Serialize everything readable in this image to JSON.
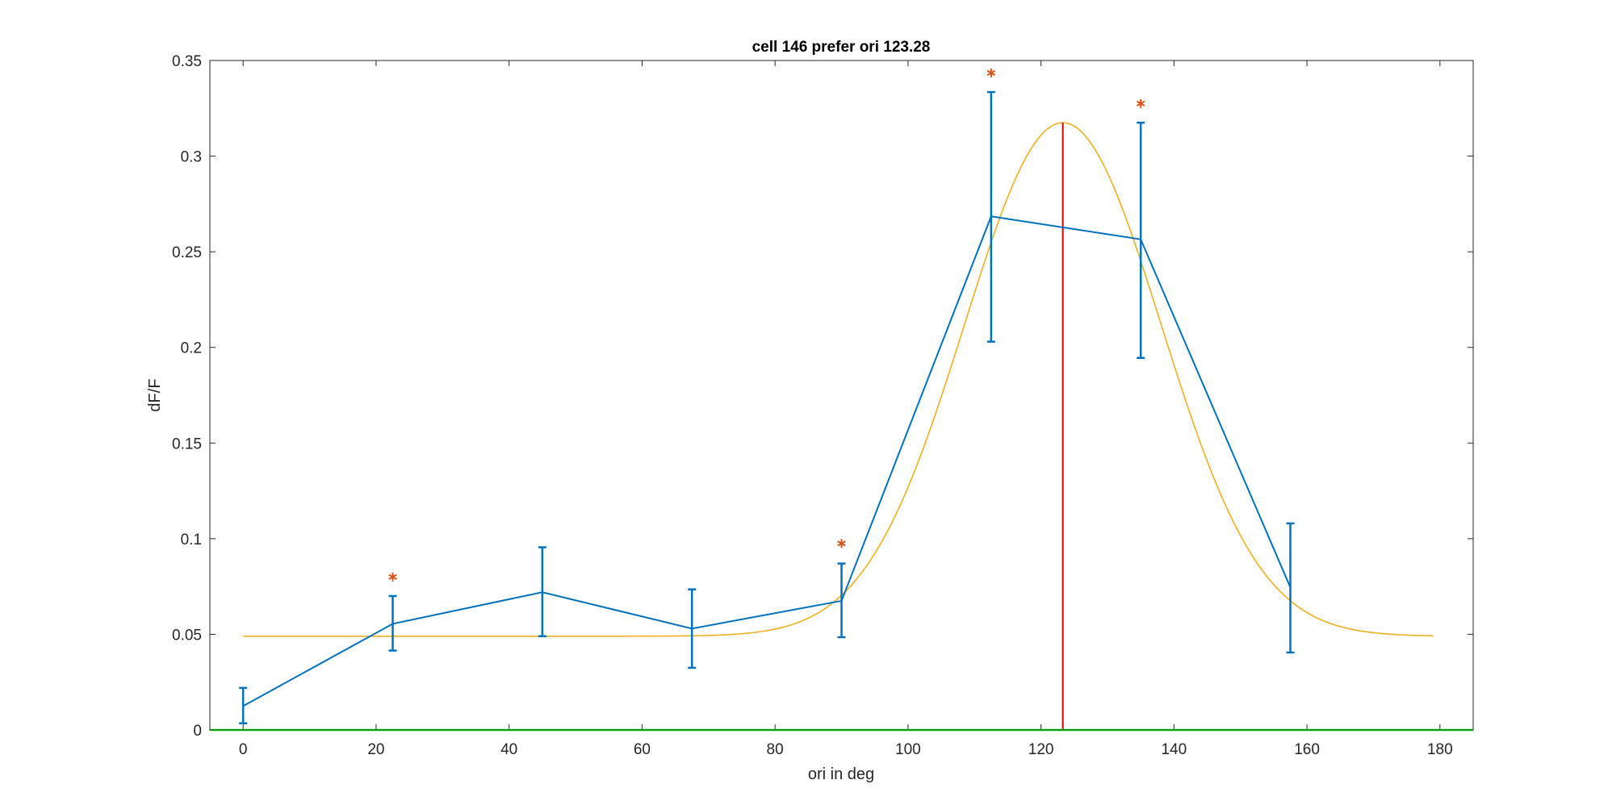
{
  "chart_data": {
    "type": "line",
    "title": "cell 146 prefer ori 123.28",
    "xlabel": "ori in deg",
    "ylabel": "dF/F",
    "xlim": [
      -5,
      185
    ],
    "ylim": [
      0,
      0.35
    ],
    "xticks": [
      0,
      20,
      40,
      60,
      80,
      100,
      120,
      140,
      160,
      180
    ],
    "yticks": [
      0,
      0.05,
      0.1,
      0.15,
      0.2,
      0.25,
      0.3,
      0.35
    ],
    "ytick_labels": [
      "0",
      "0.05",
      "0.1",
      "0.15",
      "0.2",
      "0.25",
      "0.3",
      "0.35"
    ],
    "grid": false,
    "box": true,
    "series": [
      {
        "kind": "errorbar-line",
        "color": "#0072BD",
        "x": [
          0,
          22.5,
          45,
          67.5,
          90,
          112.5,
          135,
          157.5
        ],
        "y": [
          0.0125,
          0.0555,
          0.072,
          0.053,
          0.0675,
          0.2685,
          0.2565,
          0.0745
        ],
        "err_low": [
          0.0035,
          0.0415,
          0.049,
          0.0325,
          0.0485,
          0.203,
          0.1945,
          0.0405
        ],
        "err_high": [
          0.022,
          0.07,
          0.0955,
          0.0735,
          0.087,
          0.3335,
          0.3175,
          0.108
        ]
      },
      {
        "kind": "fit-curve",
        "color": "#EDB120",
        "baseline": 0.049,
        "amplitude": 0.2685,
        "peak": 123.28,
        "width": 14.8,
        "x_range": [
          0,
          179
        ]
      },
      {
        "kind": "significance-markers",
        "color": "#D95319",
        "symbol": "*",
        "x": [
          22.5,
          90,
          112.5,
          135
        ],
        "y": [
          0.08,
          0.0975,
          0.3435,
          0.3275
        ]
      },
      {
        "kind": "preferred-orientation-line",
        "color": "#D40000",
        "x": 123.28,
        "y_range": [
          0,
          0.3175
        ]
      },
      {
        "kind": "zero-line",
        "color": "#00FF00",
        "y": 0
      }
    ]
  }
}
